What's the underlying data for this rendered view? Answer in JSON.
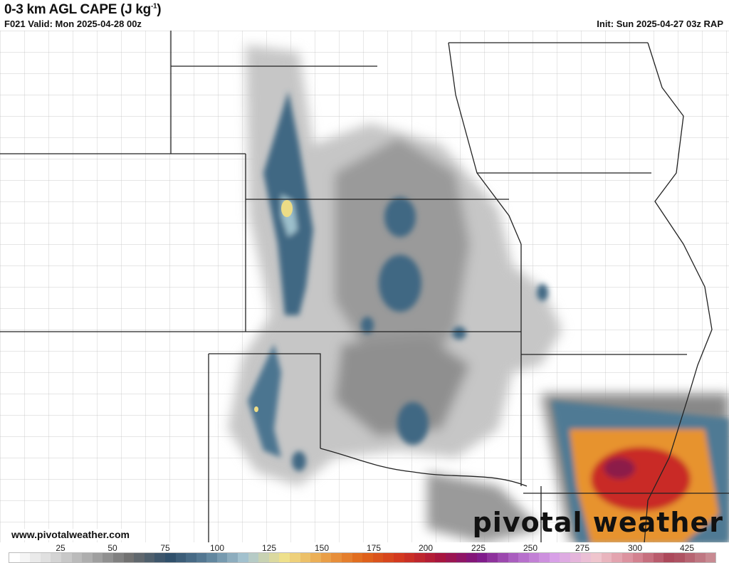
{
  "header": {
    "title": "0-3 km AGL CAPE (J kg",
    "title_unit_exp": "-1",
    "title_close": ")",
    "valid": "F021 Valid: Mon 2025-04-28 00z",
    "init": "Init: Sun 2025-04-27 03z RAP"
  },
  "footer": {
    "website": "www.pivotalweather.com",
    "logo_text": "pivotal weather"
  },
  "colorbar": {
    "labels": [
      "25",
      "50",
      "75",
      "100",
      "125",
      "150",
      "175",
      "200",
      "225",
      "250",
      "275",
      "300",
      "425"
    ],
    "anchor_colors": [
      "#ffffff",
      "#d8d8d8",
      "#a8a8a8",
      "#6e6e6e",
      "#2f4f6a",
      "#5a7f99",
      "#a9c7d3",
      "#efe08a",
      "#eaa24a",
      "#e0661a",
      "#d2361f",
      "#a8153d",
      "#7b1585",
      "#b066c6",
      "#d9a2e8",
      "#f0c8cf",
      "#d98a98",
      "#a84456",
      "#c88a92"
    ]
  },
  "map": {
    "colors": {
      "background": "#ffffff",
      "county": "#b8b8b8",
      "state": "#222222",
      "low": "#c9c9c9",
      "mid": "#7a7a7a",
      "blue": "#3f6783",
      "lightblue": "#9dc0cc",
      "yellow": "#ecdc86",
      "orange": "#e7932f",
      "red": "#c92c28",
      "maroon": "#8c1a4a"
    }
  }
}
